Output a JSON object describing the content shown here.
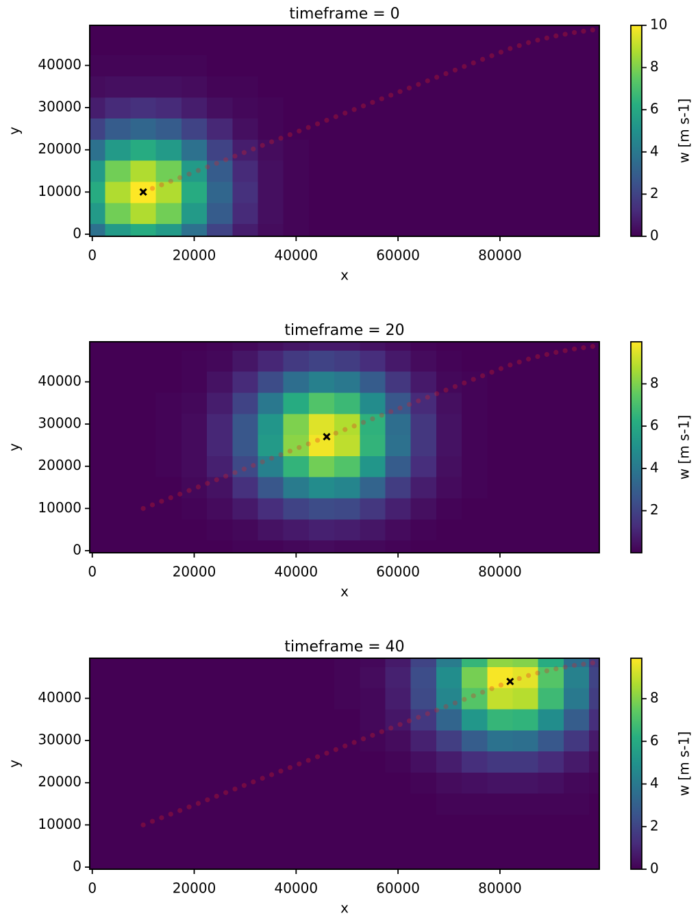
{
  "chart_data": [
    {
      "type": "heatmap",
      "title": "timeframe = 0",
      "xlabel": "x",
      "ylabel": "y",
      "colorbar_label": "w [m s-1]",
      "xlim": [
        -500,
        99500
      ],
      "ylim": [
        -500,
        49500
      ],
      "xticks": [
        0,
        20000,
        40000,
        60000,
        80000
      ],
      "yticks": [
        0,
        10000,
        20000,
        30000,
        40000
      ],
      "clim": [
        0,
        10
      ],
      "cticks": [
        0,
        2,
        4,
        6,
        8,
        10
      ],
      "grid_x": [
        0,
        5000,
        10000,
        15000,
        20000,
        25000,
        30000,
        35000,
        40000,
        45000,
        50000,
        55000,
        60000,
        65000,
        70000,
        75000,
        80000,
        85000,
        90000,
        95000,
        100000
      ],
      "grid_y": [
        0,
        5000,
        10000,
        15000,
        20000,
        25000,
        30000,
        35000,
        40000,
        45000,
        50000
      ],
      "z": [
        [
          3.7,
          5.4,
          6.1,
          5.4,
          3.7,
          2.0,
          0.8,
          0.3,
          0.1,
          0,
          0,
          0,
          0,
          0,
          0,
          0,
          0,
          0,
          0,
          0,
          0
        ],
        [
          5.4,
          7.8,
          8.8,
          7.8,
          5.4,
          2.9,
          1.2,
          0.4,
          0.1,
          0,
          0,
          0,
          0,
          0,
          0,
          0,
          0,
          0,
          0,
          0,
          0
        ],
        [
          6.1,
          8.8,
          10,
          8.8,
          6.1,
          3.3,
          1.4,
          0.4,
          0.1,
          0,
          0,
          0,
          0,
          0,
          0,
          0,
          0,
          0,
          0,
          0,
          0
        ],
        [
          5.4,
          7.8,
          8.8,
          7.8,
          5.4,
          2.9,
          1.2,
          0.4,
          0.1,
          0,
          0,
          0,
          0,
          0,
          0,
          0,
          0,
          0,
          0,
          0,
          0
        ],
        [
          3.7,
          5.4,
          6.1,
          5.4,
          3.7,
          2.0,
          0.8,
          0.3,
          0.1,
          0,
          0,
          0,
          0,
          0,
          0,
          0,
          0,
          0,
          0,
          0,
          0
        ],
        [
          2.0,
          2.9,
          3.3,
          2.9,
          2.0,
          1.1,
          0.4,
          0.1,
          0,
          0,
          0,
          0,
          0,
          0,
          0,
          0,
          0,
          0,
          0,
          0,
          0
        ],
        [
          0.8,
          1.2,
          1.4,
          1.2,
          0.8,
          0.4,
          0.2,
          0.1,
          0,
          0,
          0,
          0,
          0,
          0,
          0,
          0,
          0,
          0,
          0,
          0,
          0
        ],
        [
          0.3,
          0.4,
          0.4,
          0.4,
          0.3,
          0.1,
          0.1,
          0,
          0,
          0,
          0,
          0,
          0,
          0,
          0,
          0,
          0,
          0,
          0,
          0,
          0
        ],
        [
          0.1,
          0.1,
          0.1,
          0.1,
          0.1,
          0,
          0,
          0,
          0,
          0,
          0,
          0,
          0,
          0,
          0,
          0,
          0,
          0,
          0,
          0,
          0
        ],
        [
          0,
          0,
          0,
          0,
          0,
          0,
          0,
          0,
          0,
          0,
          0,
          0,
          0,
          0,
          0,
          0,
          0,
          0,
          0,
          0,
          0
        ],
        [
          0,
          0,
          0,
          0,
          0,
          0,
          0,
          0,
          0,
          0,
          0,
          0,
          0,
          0,
          0,
          0,
          0,
          0,
          0,
          0,
          0
        ]
      ],
      "track_color": "#e02020",
      "marker_color": "#000000",
      "track": {
        "x": [
          10000,
          11800,
          13600,
          15400,
          17200,
          19000,
          20800,
          22600,
          24400,
          26200,
          28000,
          29800,
          31600,
          33400,
          35200,
          37000,
          38800,
          40600,
          42400,
          44200,
          46000,
          47800,
          49600,
          51400,
          53200,
          55000,
          56800,
          58600,
          60400,
          62200,
          64000,
          65800,
          67600,
          69400,
          71200,
          73000,
          74800,
          76600,
          78400,
          80200,
          82000,
          83800,
          85600,
          87400,
          89200,
          91000,
          92800,
          94600,
          96400,
          98200
        ],
        "y": [
          10000,
          10850,
          11700,
          12550,
          13400,
          14250,
          15100,
          15950,
          16800,
          17650,
          18500,
          19350,
          20200,
          21050,
          21900,
          22750,
          23600,
          24450,
          25300,
          26150,
          27000,
          27850,
          28700,
          29550,
          30400,
          31250,
          32100,
          32950,
          33800,
          34650,
          35500,
          36350,
          37200,
          38050,
          38900,
          39750,
          40600,
          41450,
          42300,
          43150,
          44000,
          44700,
          45400,
          46000,
          46500,
          47000,
          47400,
          47800,
          48100,
          48400
        ]
      },
      "marker": {
        "x": 10000,
        "y": 10000
      }
    },
    {
      "type": "heatmap",
      "title": "timeframe = 20",
      "xlabel": "x",
      "ylabel": "y",
      "colorbar_label": "w [m s-1]",
      "xlim": [
        -500,
        99500
      ],
      "ylim": [
        -500,
        49500
      ],
      "xticks": [
        0,
        20000,
        40000,
        60000,
        80000
      ],
      "yticks": [
        0,
        10000,
        20000,
        30000,
        40000
      ],
      "clim": [
        0.01,
        9.99
      ],
      "cticks": [
        2,
        4,
        6,
        8
      ],
      "grid_x": [
        0,
        5000,
        10000,
        15000,
        20000,
        25000,
        30000,
        35000,
        40000,
        45000,
        50000,
        55000,
        60000,
        65000,
        70000,
        75000,
        80000,
        85000,
        90000,
        95000,
        100000
      ],
      "grid_y": [
        0,
        5000,
        10000,
        15000,
        20000,
        25000,
        30000,
        35000,
        40000,
        45000,
        50000
      ],
      "z": [
        [
          0,
          0,
          0,
          0,
          0,
          0,
          0.1,
          0.1,
          0.2,
          0.3,
          0.2,
          0.2,
          0.1,
          0,
          0,
          0,
          0,
          0,
          0,
          0,
          0
        ],
        [
          0,
          0,
          0,
          0,
          0,
          0.1,
          0.2,
          0.5,
          0.7,
          0.9,
          0.8,
          0.6,
          0.3,
          0.1,
          0,
          0,
          0,
          0,
          0,
          0,
          0
        ],
        [
          0,
          0,
          0,
          0,
          0.1,
          0.3,
          0.7,
          1.3,
          2.0,
          2.3,
          2.2,
          1.6,
          0.9,
          0.4,
          0.1,
          0,
          0,
          0,
          0,
          0,
          0
        ],
        [
          0,
          0,
          0,
          0,
          0.2,
          0.5,
          1.4,
          2.7,
          4.1,
          4.8,
          4.5,
          3.2,
          1.8,
          0.8,
          0.3,
          0.1,
          0,
          0,
          0,
          0,
          0
        ],
        [
          0,
          0,
          0,
          0.1,
          0.3,
          0.9,
          2.2,
          4.3,
          6.5,
          7.8,
          7.2,
          5.2,
          2.9,
          1.3,
          0.4,
          0.1,
          0,
          0,
          0,
          0,
          0
        ],
        [
          0,
          0,
          0,
          0.1,
          0.3,
          1.1,
          2.7,
          5.4,
          8.2,
          9.8,
          9.0,
          6.5,
          3.7,
          1.6,
          0.5,
          0.1,
          0,
          0,
          0,
          0,
          0
        ],
        [
          0,
          0,
          0,
          0.1,
          0.3,
          1.1,
          2.7,
          5.2,
          8.0,
          9.5,
          8.8,
          6.4,
          3.6,
          1.6,
          0.5,
          0.1,
          0,
          0,
          0,
          0,
          0
        ],
        [
          0,
          0,
          0,
          0.1,
          0.2,
          0.8,
          2.0,
          4.0,
          6.1,
          7.2,
          6.7,
          4.8,
          2.7,
          1.2,
          0.4,
          0.1,
          0,
          0,
          0,
          0,
          0
        ],
        [
          0,
          0,
          0,
          0,
          0.1,
          0.5,
          1.2,
          2.3,
          3.6,
          4.3,
          4.0,
          2.9,
          1.6,
          0.7,
          0.2,
          0.1,
          0,
          0,
          0,
          0,
          0
        ],
        [
          0,
          0,
          0,
          0,
          0.1,
          0.2,
          0.6,
          1.1,
          1.7,
          2.0,
          1.8,
          1.3,
          0.7,
          0.3,
          0.1,
          0,
          0,
          0,
          0,
          0,
          0
        ],
        [
          0,
          0,
          0,
          0,
          0,
          0.1,
          0.2,
          0.4,
          0.6,
          0.7,
          0.7,
          0.5,
          0.3,
          0.1,
          0,
          0,
          0,
          0,
          0,
          0,
          0
        ]
      ],
      "track_color": "#e02020",
      "marker_color": "#000000",
      "track": {
        "x": [
          10000,
          11800,
          13600,
          15400,
          17200,
          19000,
          20800,
          22600,
          24400,
          26200,
          28000,
          29800,
          31600,
          33400,
          35200,
          37000,
          38800,
          40600,
          42400,
          44200,
          46000,
          47800,
          49600,
          51400,
          53200,
          55000,
          56800,
          58600,
          60400,
          62200,
          64000,
          65800,
          67600,
          69400,
          71200,
          73000,
          74800,
          76600,
          78400,
          80200,
          82000,
          83800,
          85600,
          87400,
          89200,
          91000,
          92800,
          94600,
          96400,
          98200
        ],
        "y": [
          10000,
          10850,
          11700,
          12550,
          13400,
          14250,
          15100,
          15950,
          16800,
          17650,
          18500,
          19350,
          20200,
          21050,
          21900,
          22750,
          23600,
          24450,
          25300,
          26150,
          27000,
          27850,
          28700,
          29550,
          30400,
          31250,
          32100,
          32950,
          33800,
          34650,
          35500,
          36350,
          37200,
          38050,
          38900,
          39750,
          40600,
          41450,
          42300,
          43150,
          44000,
          44700,
          45400,
          46000,
          46500,
          47000,
          47400,
          47800,
          48100,
          48400
        ]
      },
      "marker": {
        "x": 46000,
        "y": 27000
      }
    },
    {
      "type": "heatmap",
      "title": "timeframe = 40",
      "xlabel": "x",
      "ylabel": "y",
      "colorbar_label": "w [m s-1]",
      "xlim": [
        -500,
        99500
      ],
      "ylim": [
        -500,
        49500
      ],
      "xticks": [
        0,
        20000,
        40000,
        60000,
        80000
      ],
      "yticks": [
        0,
        10000,
        20000,
        30000,
        40000
      ],
      "clim": [
        0,
        9.9
      ],
      "cticks": [
        0,
        2,
        4,
        6,
        8
      ],
      "grid_x": [
        0,
        5000,
        10000,
        15000,
        20000,
        25000,
        30000,
        35000,
        40000,
        45000,
        50000,
        55000,
        60000,
        65000,
        70000,
        75000,
        80000,
        85000,
        90000,
        95000,
        100000
      ],
      "grid_y": [
        0,
        5000,
        10000,
        15000,
        20000,
        25000,
        30000,
        35000,
        40000,
        45000,
        50000
      ],
      "z": [
        [
          0,
          0,
          0,
          0,
          0,
          0,
          0,
          0,
          0,
          0,
          0,
          0,
          0,
          0,
          0,
          0,
          0,
          0,
          0,
          0,
          0
        ],
        [
          0,
          0,
          0,
          0,
          0,
          0,
          0,
          0,
          0,
          0,
          0,
          0,
          0,
          0,
          0,
          0,
          0,
          0,
          0,
          0,
          0
        ],
        [
          0,
          0,
          0,
          0,
          0,
          0,
          0,
          0,
          0,
          0,
          0,
          0,
          0,
          0,
          0,
          0,
          0,
          0,
          0,
          0,
          0
        ],
        [
          0,
          0,
          0,
          0,
          0,
          0,
          0,
          0,
          0,
          0,
          0,
          0,
          0,
          0,
          0.1,
          0.1,
          0.1,
          0.1,
          0.1,
          0.1,
          0
        ],
        [
          0,
          0,
          0,
          0,
          0,
          0,
          0,
          0,
          0,
          0,
          0,
          0,
          0,
          0.1,
          0.3,
          0.4,
          0.5,
          0.5,
          0.4,
          0.2,
          0.1
        ],
        [
          0,
          0,
          0,
          0,
          0,
          0,
          0,
          0,
          0,
          0,
          0,
          0,
          0.1,
          0.4,
          0.8,
          1.3,
          1.6,
          1.6,
          1.2,
          0.7,
          0.3
        ],
        [
          0,
          0,
          0,
          0,
          0,
          0,
          0,
          0,
          0,
          0,
          0,
          0.1,
          0.3,
          0.9,
          1.8,
          2.9,
          3.7,
          3.6,
          2.7,
          1.6,
          0.7
        ],
        [
          0,
          0,
          0,
          0,
          0,
          0,
          0,
          0,
          0,
          0,
          0,
          0.2,
          0.6,
          1.6,
          3.2,
          5.2,
          6.5,
          6.4,
          4.8,
          2.9,
          1.3
        ],
        [
          0,
          0,
          0,
          0,
          0,
          0,
          0,
          0,
          0,
          0,
          0.1,
          0.2,
          0.8,
          2.2,
          4.5,
          7.2,
          9.0,
          8.8,
          6.7,
          4.0,
          1.8
        ],
        [
          0,
          0,
          0,
          0,
          0,
          0,
          0,
          0,
          0,
          0,
          0.1,
          0.3,
          0.9,
          2.3,
          4.8,
          7.8,
          9.8,
          9.5,
          7.2,
          4.3,
          2.0
        ],
        [
          0,
          0,
          0,
          0,
          0,
          0,
          0,
          0,
          0,
          0,
          0.1,
          0.2,
          0.7,
          2.0,
          4.1,
          6.5,
          8.2,
          8.0,
          6.1,
          3.6,
          1.7
        ]
      ],
      "track_color": "#e02020",
      "marker_color": "#000000",
      "track": {
        "x": [
          10000,
          11800,
          13600,
          15400,
          17200,
          19000,
          20800,
          22600,
          24400,
          26200,
          28000,
          29800,
          31600,
          33400,
          35200,
          37000,
          38800,
          40600,
          42400,
          44200,
          46000,
          47800,
          49600,
          51400,
          53200,
          55000,
          56800,
          58600,
          60400,
          62200,
          64000,
          65800,
          67600,
          69400,
          71200,
          73000,
          74800,
          76600,
          78400,
          80200,
          82000,
          83800,
          85600,
          87400,
          89200,
          91000,
          92800,
          94600,
          96400,
          98200
        ],
        "y": [
          10000,
          10850,
          11700,
          12550,
          13400,
          14250,
          15100,
          15950,
          16800,
          17650,
          18500,
          19350,
          20200,
          21050,
          21900,
          22750,
          23600,
          24450,
          25300,
          26150,
          27000,
          27850,
          28700,
          29550,
          30400,
          31250,
          32100,
          32950,
          33800,
          34650,
          35500,
          36350,
          37200,
          38050,
          38900,
          39750,
          40600,
          41450,
          42300,
          43150,
          44000,
          44700,
          45400,
          46000,
          46500,
          47000,
          47400,
          47800,
          48100,
          48400
        ]
      },
      "marker": {
        "x": 82000,
        "y": 44000
      }
    }
  ]
}
